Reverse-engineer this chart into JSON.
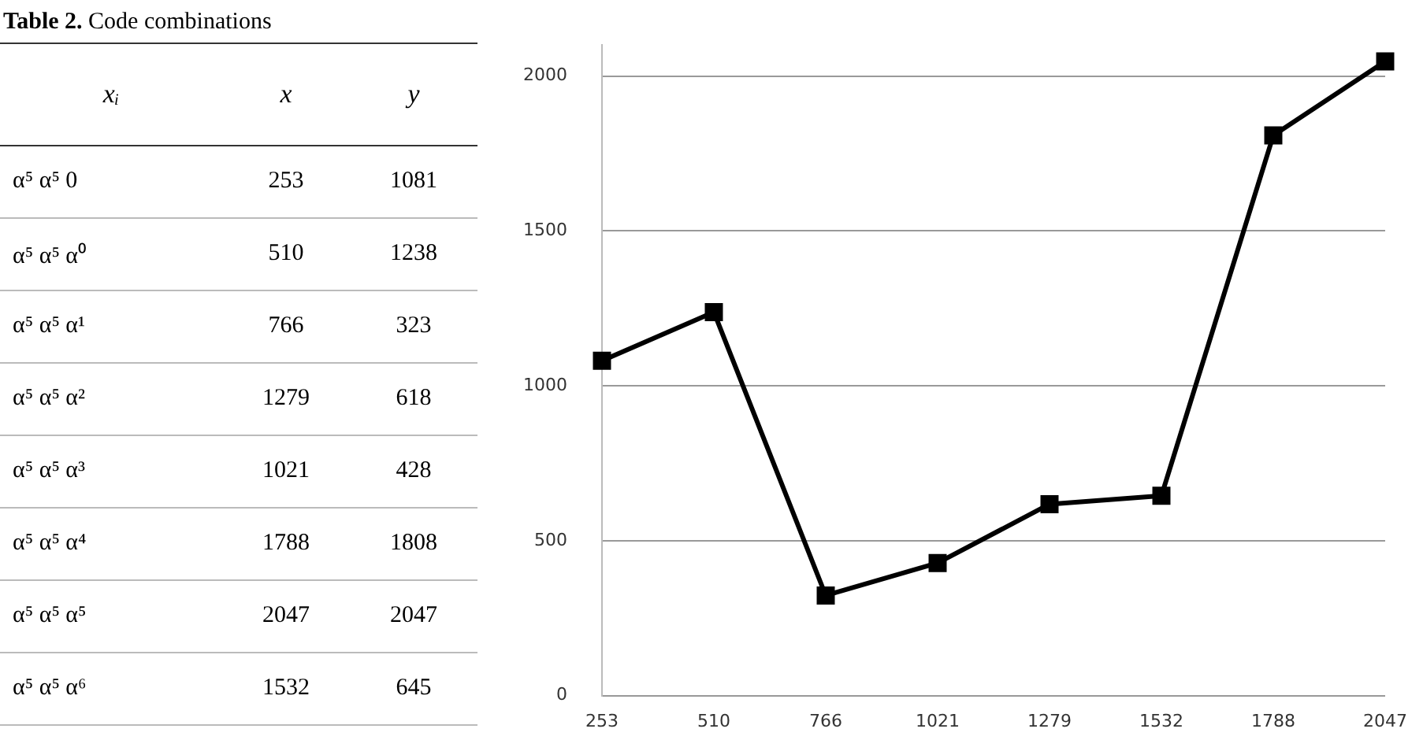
{
  "chart_data": [
    {
      "type": "other",
      "title": "Table 2. Code combinations",
      "categories": [
        "xᵢ",
        "x",
        "y"
      ],
      "annotations": [
        "α⁵ α⁵ 0",
        "253",
        "1081",
        "α⁵ α⁵ α⁰",
        "510",
        "1238",
        "α⁵ α⁵ α¹",
        "766",
        "323",
        "α⁵ α⁵ α²",
        "1279",
        "618",
        "α⁵ α⁵ α³",
        "1021",
        "428",
        "α⁵ α⁵ α⁴",
        "1788",
        "1808",
        "α⁵ α⁵ α⁵",
        "2047",
        "2047",
        "α⁵ α⁵ α⁶",
        "1532",
        "645"
      ]
    },
    {
      "type": "line",
      "categories": [
        "253",
        "510",
        "766",
        "1021",
        "1279",
        "1532",
        "1788",
        "2047"
      ],
      "series": [
        {
          "color": "#000000",
          "values": [
            1081,
            1238,
            323,
            428,
            618,
            645,
            1808,
            2047
          ]
        }
      ],
      "ylim": [
        0,
        2100
      ],
      "yticks": [
        0,
        500,
        1000,
        1500,
        2000
      ],
      "grid": "y",
      "marker": "square",
      "line_style": "solid",
      "legend": false
    }
  ]
}
